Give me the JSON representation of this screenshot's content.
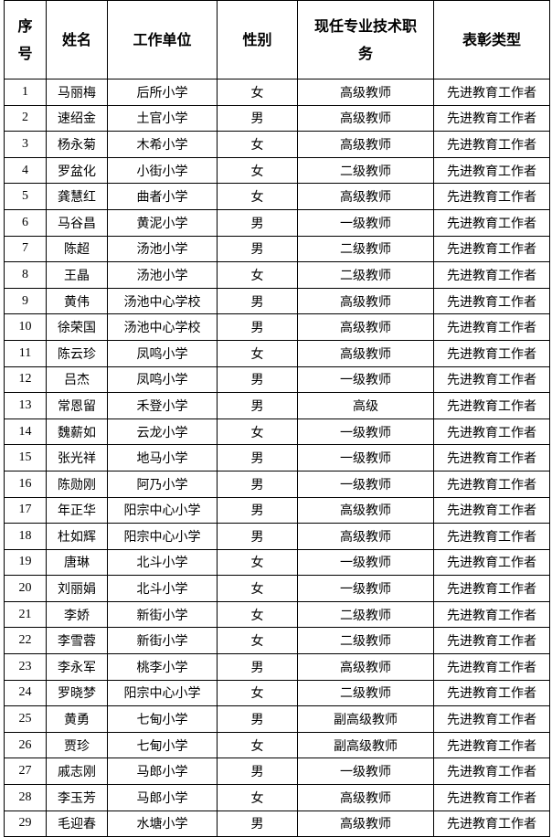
{
  "table": {
    "headers": [
      "序号",
      "姓名",
      "工作单位",
      "性别",
      "现任专业技术职务",
      "表彰类型"
    ],
    "header_lines": {
      "seq": [
        "序",
        "号"
      ],
      "title": [
        "现任专业技术职",
        "务"
      ]
    },
    "rows": [
      [
        "1",
        "马丽梅",
        "后所小学",
        "女",
        "高级教师",
        "先进教育工作者"
      ],
      [
        "2",
        "速绍金",
        "土官小学",
        "男",
        "高级教师",
        "先进教育工作者"
      ],
      [
        "3",
        "杨永菊",
        "木希小学",
        "女",
        "高级教师",
        "先进教育工作者"
      ],
      [
        "4",
        "罗盆化",
        "小街小学",
        "女",
        "二级教师",
        "先进教育工作者"
      ],
      [
        "5",
        "龚慧红",
        "曲者小学",
        "女",
        "高级教师",
        "先进教育工作者"
      ],
      [
        "6",
        "马谷昌",
        "黄泥小学",
        "男",
        "一级教师",
        "先进教育工作者"
      ],
      [
        "7",
        "陈超",
        "汤池小学",
        "男",
        "二级教师",
        "先进教育工作者"
      ],
      [
        "8",
        "王晶",
        "汤池小学",
        "女",
        "二级教师",
        "先进教育工作者"
      ],
      [
        "9",
        "黄伟",
        "汤池中心学校",
        "男",
        "高级教师",
        "先进教育工作者"
      ],
      [
        "10",
        "徐荣国",
        "汤池中心学校",
        "男",
        "高级教师",
        "先进教育工作者"
      ],
      [
        "11",
        "陈云珍",
        "凤鸣小学",
        "女",
        "高级教师",
        "先进教育工作者"
      ],
      [
        "12",
        "吕杰",
        "凤鸣小学",
        "男",
        "一级教师",
        "先进教育工作者"
      ],
      [
        "13",
        "常恩留",
        "禾登小学",
        "男",
        "高级",
        "先进教育工作者"
      ],
      [
        "14",
        "魏薪如",
        "云龙小学",
        "女",
        "一级教师",
        "先进教育工作者"
      ],
      [
        "15",
        "张光祥",
        "地马小学",
        "男",
        "一级教师",
        "先进教育工作者"
      ],
      [
        "16",
        "陈勋刚",
        "阿乃小学",
        "男",
        "一级教师",
        "先进教育工作者"
      ],
      [
        "17",
        "年正华",
        "阳宗中心小学",
        "男",
        "高级教师",
        "先进教育工作者"
      ],
      [
        "18",
        "杜如辉",
        "阳宗中心小学",
        "男",
        "高级教师",
        "先进教育工作者"
      ],
      [
        "19",
        "唐琳",
        "北斗小学",
        "女",
        "一级教师",
        "先进教育工作者"
      ],
      [
        "20",
        "刘丽娟",
        "北斗小学",
        "女",
        "一级教师",
        "先进教育工作者"
      ],
      [
        "21",
        "李娇",
        "新街小学",
        "女",
        "二级教师",
        "先进教育工作者"
      ],
      [
        "22",
        "李雪蓉",
        "新街小学",
        "女",
        "二级教师",
        "先进教育工作者"
      ],
      [
        "23",
        "李永军",
        "桃李小学",
        "男",
        "高级教师",
        "先进教育工作者"
      ],
      [
        "24",
        "罗晓梦",
        "阳宗中心小学",
        "女",
        "二级教师",
        "先进教育工作者"
      ],
      [
        "25",
        "黄勇",
        "七甸小学",
        "男",
        "副高级教师",
        "先进教育工作者"
      ],
      [
        "26",
        "贾珍",
        "七甸小学",
        "女",
        "副高级教师",
        "先进教育工作者"
      ],
      [
        "27",
        "戚志刚",
        "马郎小学",
        "男",
        "一级教师",
        "先进教育工作者"
      ],
      [
        "28",
        "李玉芳",
        "马郎小学",
        "女",
        "高级教师",
        "先进教育工作者"
      ],
      [
        "29",
        "毛迎春",
        "水塘小学",
        "男",
        "高级教师",
        "先进教育工作者"
      ]
    ]
  }
}
